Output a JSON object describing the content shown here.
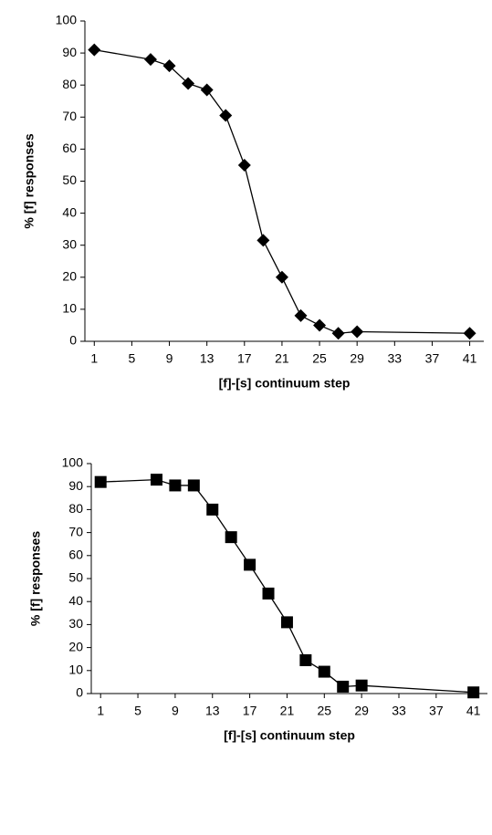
{
  "chart_data": [
    {
      "type": "line",
      "marker": "diamond",
      "color": "#000000",
      "x_label": "[f]-[s] continuum step",
      "y_label": "% [f] responses",
      "x": [
        1,
        7,
        9,
        11,
        13,
        15,
        17,
        19,
        21,
        23,
        25,
        27,
        29,
        41
      ],
      "values": [
        91,
        88,
        86,
        80.5,
        78.5,
        70.5,
        55,
        31.5,
        20,
        8,
        5,
        2.5,
        3,
        2.5
      ],
      "xlim": [
        0,
        42.5
      ],
      "xticks": [
        1,
        5,
        9,
        13,
        17,
        21,
        25,
        29,
        33,
        37,
        41
      ],
      "ylim": [
        0,
        100
      ],
      "yticks": [
        0,
        10,
        20,
        30,
        40,
        50,
        60,
        70,
        80,
        90,
        100
      ]
    },
    {
      "type": "line",
      "marker": "square",
      "color": "#000000",
      "x_label": "[f]-[s] continuum step",
      "y_label": "% [f] responses",
      "x": [
        1,
        7,
        9,
        11,
        13,
        15,
        17,
        19,
        21,
        23,
        25,
        27,
        29,
        41
      ],
      "values": [
        92,
        93,
        90.5,
        90.5,
        80,
        68,
        56,
        43.5,
        31,
        14.5,
        9.5,
        3,
        3.5,
        0.5
      ],
      "xlim": [
        0,
        42.5
      ],
      "xticks": [
        1,
        5,
        9,
        13,
        17,
        21,
        25,
        29,
        33,
        37,
        41
      ],
      "ylim": [
        0,
        100
      ],
      "yticks": [
        0,
        10,
        20,
        30,
        40,
        50,
        60,
        70,
        80,
        90,
        100
      ]
    }
  ]
}
